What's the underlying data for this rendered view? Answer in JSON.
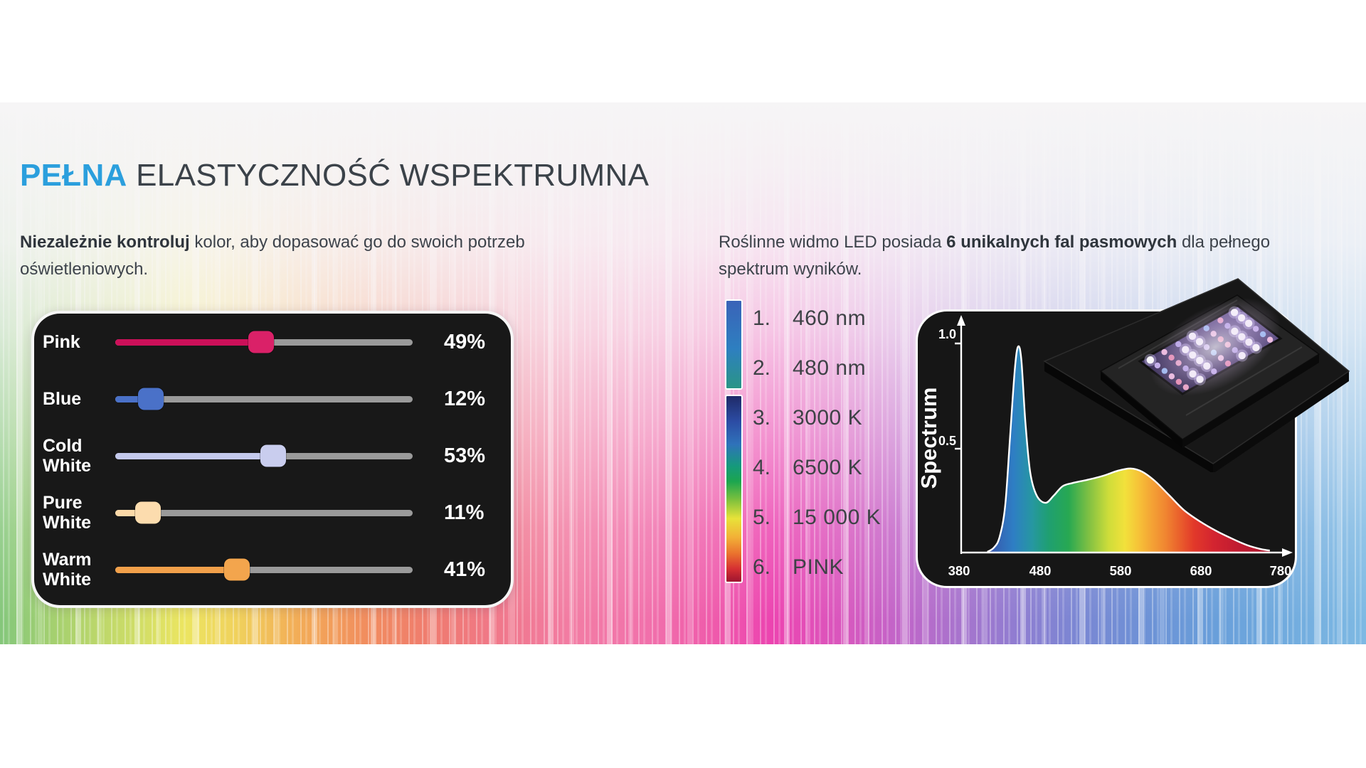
{
  "header": {
    "title_highlight": "PEŁNA",
    "title_rest": " ELASTYCZNOŚĆ WSPEKTRUMNA",
    "highlight_color": "#2b9fdd"
  },
  "intro_left": {
    "bold": "Niezależnie kontroluj",
    "rest": " kolor, aby dopasować go do swoich potrzeb oświetleniowych."
  },
  "intro_right": {
    "pre": "Roślinne widmo LED posiada ",
    "bold": "6 unikalnych fal pasmowych",
    "post": " dla pełnego spektrum wyników."
  },
  "sliders": {
    "track_color": "#9a9a9a",
    "rows": [
      {
        "label": "Pink",
        "value": 49,
        "value_label": "49%",
        "color": "#cc1059",
        "handle_color": "#da2168"
      },
      {
        "label": "Blue",
        "value": 12,
        "value_label": "12%",
        "color": "#4a71c8",
        "handle_color": "#4a71c8"
      },
      {
        "label": "Cold White",
        "value": 53,
        "value_label": "53%",
        "color": "#c4c9ec",
        "handle_color": "#c9cdee"
      },
      {
        "label": "Pure White",
        "value": 11,
        "value_label": "11%",
        "color": "#fbd9a8",
        "handle_color": "#fcdcae"
      },
      {
        "label": "Warm White",
        "value": 41,
        "value_label": "41%",
        "color": "#f1a04a",
        "handle_color": "#f3a54d"
      }
    ]
  },
  "band_list": {
    "items": [
      {
        "num": "1.",
        "label": "460 nm"
      },
      {
        "num": "2.",
        "label": "480 nm"
      },
      {
        "num": "3.",
        "label": "3000 K"
      },
      {
        "num": "4.",
        "label": "6500 K"
      },
      {
        "num": "5.",
        "label": "15 000 K"
      },
      {
        "num": "6.",
        "label": "PINK"
      }
    ]
  },
  "chart_data": {
    "type": "area",
    "ylabel": "Spectrum",
    "xlim": [
      380,
      780
    ],
    "ylim": [
      0,
      1.0
    ],
    "x_tick_labels": [
      "380",
      "480",
      "580",
      "680",
      "780"
    ],
    "x_tick_values": [
      380,
      480,
      580,
      680,
      780
    ],
    "y_tick_labels": [
      "1.0",
      "0.5"
    ],
    "y_tick_values": [
      1.0,
      0.5
    ],
    "grid": false,
    "background": "#161616",
    "axis_color": "#ffffff",
    "points": [
      [
        415,
        0
      ],
      [
        423,
        0.02
      ],
      [
        430,
        0.07
      ],
      [
        437,
        0.22
      ],
      [
        443,
        0.55
      ],
      [
        449,
        0.88
      ],
      [
        453,
        0.985
      ],
      [
        457,
        0.92
      ],
      [
        462,
        0.62
      ],
      [
        468,
        0.38
      ],
      [
        476,
        0.27
      ],
      [
        487,
        0.235
      ],
      [
        497,
        0.27
      ],
      [
        508,
        0.315
      ],
      [
        520,
        0.33
      ],
      [
        538,
        0.345
      ],
      [
        558,
        0.365
      ],
      [
        577,
        0.39
      ],
      [
        592,
        0.4
      ],
      [
        606,
        0.385
      ],
      [
        622,
        0.34
      ],
      [
        640,
        0.27
      ],
      [
        658,
        0.2
      ],
      [
        678,
        0.145
      ],
      [
        698,
        0.1
      ],
      [
        718,
        0.062
      ],
      [
        736,
        0.032
      ],
      [
        752,
        0.014
      ],
      [
        764,
        0.006
      ]
    ],
    "fill_stops": [
      {
        "nm": 415,
        "color": "#3952aa"
      },
      {
        "nm": 447,
        "color": "#2e7ec4"
      },
      {
        "nm": 470,
        "color": "#2697a2"
      },
      {
        "nm": 490,
        "color": "#1f9f72"
      },
      {
        "nm": 515,
        "color": "#27a852"
      },
      {
        "nm": 540,
        "color": "#7fc043"
      },
      {
        "nm": 565,
        "color": "#cfdd3a"
      },
      {
        "nm": 585,
        "color": "#f2e13b"
      },
      {
        "nm": 602,
        "color": "#f6c238"
      },
      {
        "nm": 618,
        "color": "#f4a335"
      },
      {
        "nm": 635,
        "color": "#f08631"
      },
      {
        "nm": 652,
        "color": "#ea612c"
      },
      {
        "nm": 670,
        "color": "#e2392a"
      },
      {
        "nm": 695,
        "color": "#d32430"
      },
      {
        "nm": 725,
        "color": "#c01b31"
      },
      {
        "nm": 760,
        "color": "#ad152c"
      }
    ]
  }
}
